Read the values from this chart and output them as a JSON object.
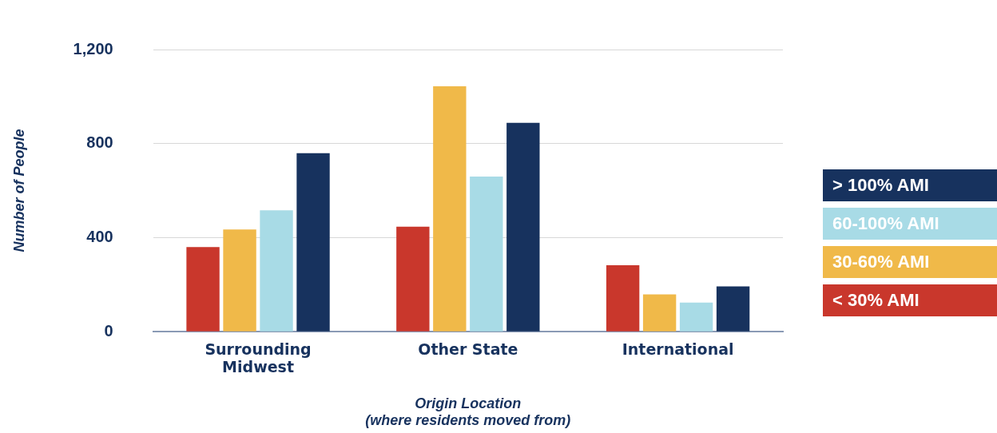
{
  "chart_data": {
    "type": "bar",
    "xlabel": "Origin Location\n(where residents moved from)",
    "ylabel": "Number of People",
    "categories": [
      "Surrounding\nMidwest",
      "Other State",
      "International"
    ],
    "series": [
      {
        "name": "< 30% AMI",
        "color": "#c9372c",
        "values": [
          360,
          447,
          283
        ]
      },
      {
        "name": "30-60% AMI",
        "color": "#f0b949",
        "values": [
          435,
          1044,
          159
        ]
      },
      {
        "name": "60-100% AMI",
        "color": "#a8dbe6",
        "values": [
          516,
          660,
          124
        ]
      },
      {
        "name": "> 100% AMI",
        "color": "#17325e",
        "values": [
          759,
          888,
          193
        ]
      }
    ],
    "ylim": [
      0,
      1200
    ],
    "yticks": [
      0,
      400,
      800,
      {
        "value": 1200,
        "label": "1,200"
      }
    ],
    "grid": "y",
    "legend": "right"
  }
}
